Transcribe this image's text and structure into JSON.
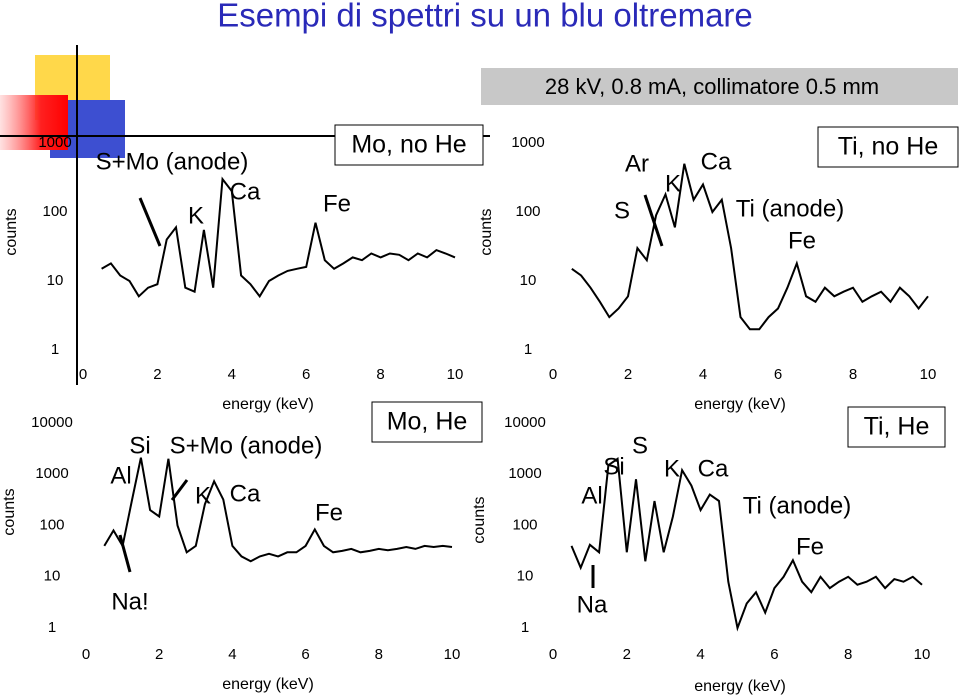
{
  "header": {
    "title": "Esempi di spettri su un blu oltremare",
    "conditions": "28 kV, 0.8 mA, collimatore 0.5 mm"
  },
  "chart_data": [
    {
      "type": "line",
      "panel_label": "Mo, no He",
      "x_label": "energy (keV)",
      "y_label": "counts",
      "log_scale": true,
      "color": "#000000",
      "xlim": [
        0,
        10
      ],
      "xticks": [
        0,
        2,
        4,
        6,
        8,
        10
      ],
      "ylim": [
        1,
        1000
      ],
      "yticks": [
        1,
        10,
        100,
        1000
      ],
      "annotations": [
        "S+Mo (anode)",
        "K",
        "Ca",
        "Fe"
      ],
      "x": [
        0.5,
        0.75,
        1,
        1.25,
        1.5,
        1.75,
        2,
        2.25,
        2.5,
        2.75,
        3,
        3.25,
        3.5,
        3.75,
        4,
        4.25,
        4.5,
        4.75,
        5,
        5.25,
        5.5,
        5.75,
        6,
        6.25,
        6.5,
        6.75,
        7,
        7.25,
        7.5,
        7.75,
        8,
        8.25,
        8.5,
        8.75,
        9,
        9.25,
        9.5,
        9.75,
        10
      ],
      "values": [
        15,
        18,
        12,
        10,
        6,
        8,
        9,
        40,
        60,
        8,
        7,
        55,
        8,
        300,
        200,
        12,
        9,
        6,
        10,
        12,
        14,
        15,
        16,
        70,
        20,
        15,
        18,
        22,
        20,
        25,
        22,
        25,
        24,
        20,
        25,
        22,
        28,
        25,
        22
      ]
    },
    {
      "type": "line",
      "panel_label": "Ti, no He",
      "x_label": "energy (keV)",
      "y_label": "counts",
      "log_scale": true,
      "color": "#000000",
      "xlim": [
        0,
        10
      ],
      "xticks": [
        0,
        2,
        4,
        6,
        8,
        10
      ],
      "ylim": [
        1,
        1000
      ],
      "yticks": [
        1,
        10,
        100,
        1000
      ],
      "annotations": [
        "Ar",
        "K",
        "Ca",
        "S",
        "Ti (anode)",
        "Fe"
      ],
      "x": [
        0.5,
        0.75,
        1,
        1.25,
        1.5,
        1.75,
        2,
        2.25,
        2.5,
        2.75,
        3,
        3.25,
        3.5,
        3.75,
        4,
        4.25,
        4.5,
        4.75,
        5,
        5.25,
        5.5,
        5.75,
        6,
        6.25,
        6.5,
        6.75,
        7,
        7.25,
        7.5,
        7.75,
        8,
        8.25,
        8.5,
        8.75,
        9,
        9.25,
        9.5,
        9.75,
        10
      ],
      "values": [
        15,
        12,
        8,
        5,
        3,
        4,
        6,
        30,
        20,
        90,
        180,
        60,
        500,
        150,
        250,
        100,
        150,
        30,
        3,
        2,
        2,
        3,
        4,
        8,
        18,
        6,
        5,
        8,
        6,
        7,
        8,
        5,
        6,
        7,
        5,
        8,
        6,
        4,
        6
      ]
    },
    {
      "type": "line",
      "panel_label": "Mo, He",
      "x_label": "energy (keV)",
      "y_label": "counts",
      "log_scale": true,
      "color": "#000000",
      "xlim": [
        0,
        10
      ],
      "xticks": [
        0,
        2,
        4,
        6,
        8,
        10
      ],
      "ylim": [
        1,
        10000
      ],
      "yticks": [
        1,
        10,
        100,
        1000,
        10000
      ],
      "annotations": [
        "Si",
        "S+Mo (anode)",
        "Al",
        "K",
        "Ca",
        "Fe",
        "Na!"
      ],
      "x": [
        0.5,
        0.75,
        1,
        1.25,
        1.5,
        1.75,
        2,
        2.25,
        2.5,
        2.75,
        3,
        3.25,
        3.5,
        3.75,
        4,
        4.25,
        4.5,
        4.75,
        5,
        5.25,
        5.5,
        5.75,
        6,
        6.25,
        6.5,
        6.75,
        7,
        7.25,
        7.5,
        7.75,
        8,
        8.25,
        8.5,
        8.75,
        9,
        9.25,
        9.5,
        9.75,
        10
      ],
      "values": [
        40,
        80,
        40,
        300,
        2100,
        200,
        150,
        2000,
        100,
        30,
        40,
        260,
        730,
        320,
        40,
        25,
        20,
        25,
        28,
        25,
        30,
        30,
        40,
        84,
        40,
        30,
        32,
        35,
        30,
        32,
        35,
        33,
        35,
        38,
        35,
        40,
        38,
        40,
        38
      ]
    },
    {
      "type": "line",
      "panel_label": "Ti, He",
      "x_label": "energy (keV)",
      "y_label": "counts",
      "log_scale": true,
      "color": "#000000",
      "xlim": [
        0,
        10
      ],
      "xticks": [
        0,
        2,
        4,
        6,
        8,
        10
      ],
      "ylim": [
        1,
        10000
      ],
      "yticks": [
        1,
        10,
        100,
        1000,
        10000
      ],
      "annotations": [
        "Si",
        "S",
        "K",
        "Ca",
        "Al",
        "Ti (anode)",
        "Fe",
        "Na"
      ],
      "x": [
        0.5,
        0.75,
        1,
        1.25,
        1.5,
        1.75,
        2,
        2.25,
        2.5,
        2.75,
        3,
        3.25,
        3.5,
        3.75,
        4,
        4.25,
        4.5,
        4.75,
        5,
        5.25,
        5.5,
        5.75,
        6,
        6.25,
        6.5,
        6.75,
        7,
        7.25,
        7.5,
        7.75,
        8,
        8.25,
        8.5,
        8.75,
        9,
        9.25,
        9.5,
        9.75,
        10
      ],
      "values": [
        40,
        15,
        42,
        30,
        1500,
        2000,
        30,
        800,
        20,
        300,
        30,
        150,
        1200,
        600,
        200,
        400,
        300,
        8,
        1,
        3,
        5,
        2,
        6,
        10,
        21,
        8,
        5,
        10,
        6,
        8,
        10,
        7,
        8,
        10,
        6,
        9,
        8,
        10,
        7
      ]
    }
  ]
}
